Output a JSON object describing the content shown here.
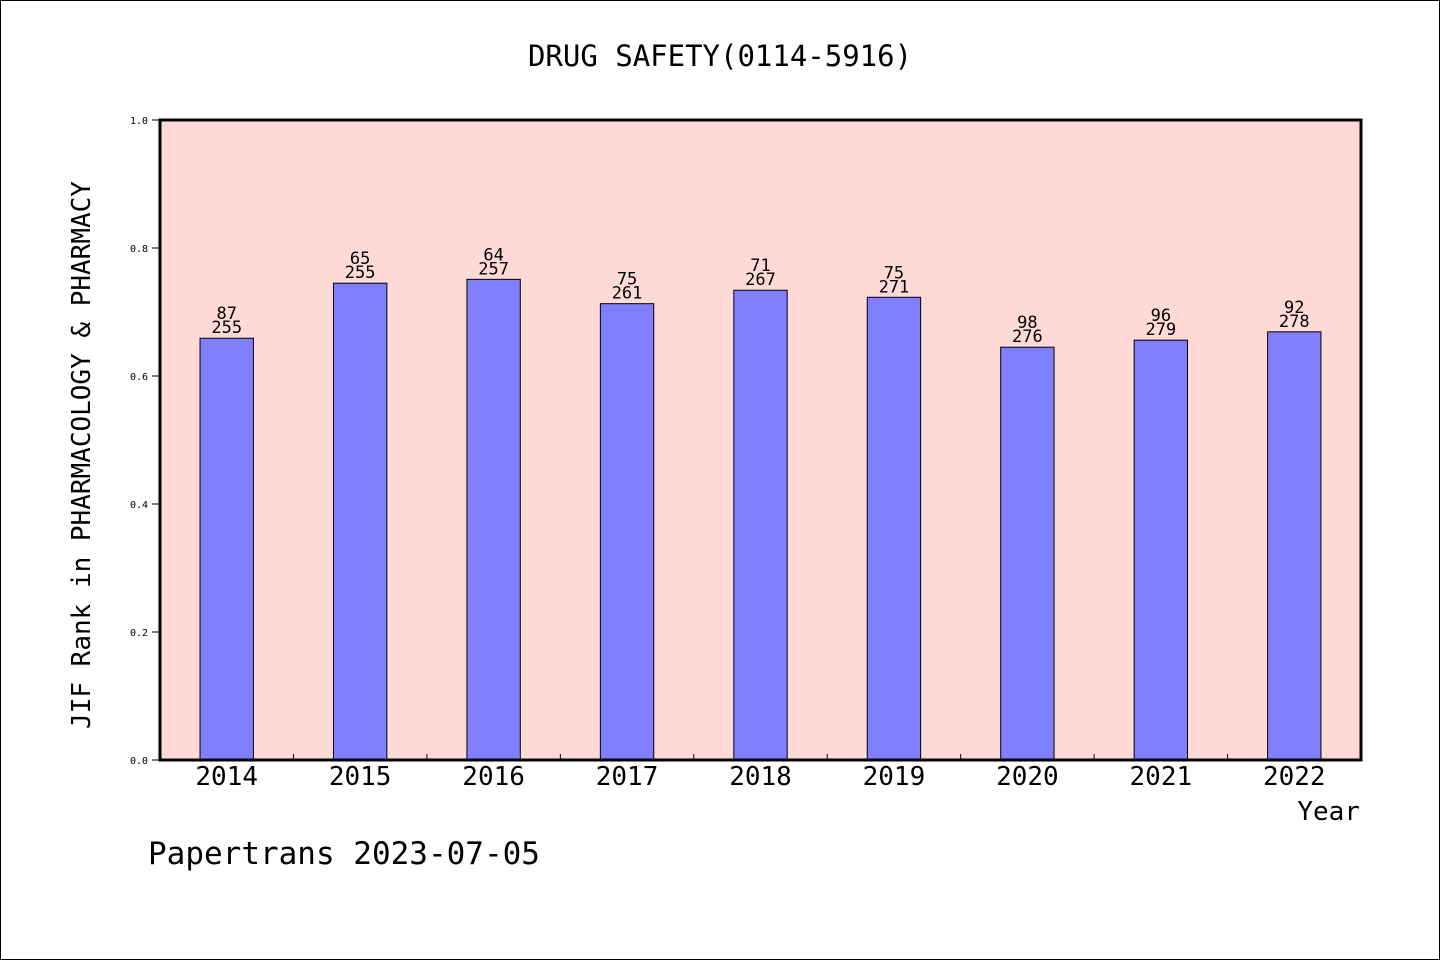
{
  "chart_data": {
    "type": "bar",
    "title": "DRUG SAFETY(0114-5916)",
    "xlabel": "Year",
    "ylabel": "JIF Rank in PHARMACOLOGY & PHARMACY",
    "ylim": [
      0,
      1.0
    ],
    "yticks": [
      "0.0",
      "0.2",
      "0.4",
      "0.6",
      "0.8",
      "1.0"
    ],
    "categories": [
      "2014",
      "2015",
      "2016",
      "2017",
      "2018",
      "2019",
      "2020",
      "2021",
      "2022"
    ],
    "values": [
      0.659,
      0.745,
      0.751,
      0.713,
      0.734,
      0.723,
      0.645,
      0.656,
      0.669
    ],
    "rank": [
      "87",
      "65",
      "64",
      "75",
      "71",
      "75",
      "98",
      "96",
      "92"
    ],
    "total": [
      "255",
      "255",
      "257",
      "261",
      "267",
      "271",
      "276",
      "279",
      "278"
    ],
    "colors": {
      "plot_background": "#ffdad7",
      "bar": "#8080ff"
    },
    "grid": false
  },
  "footer": "Papertrans 2023-07-05"
}
